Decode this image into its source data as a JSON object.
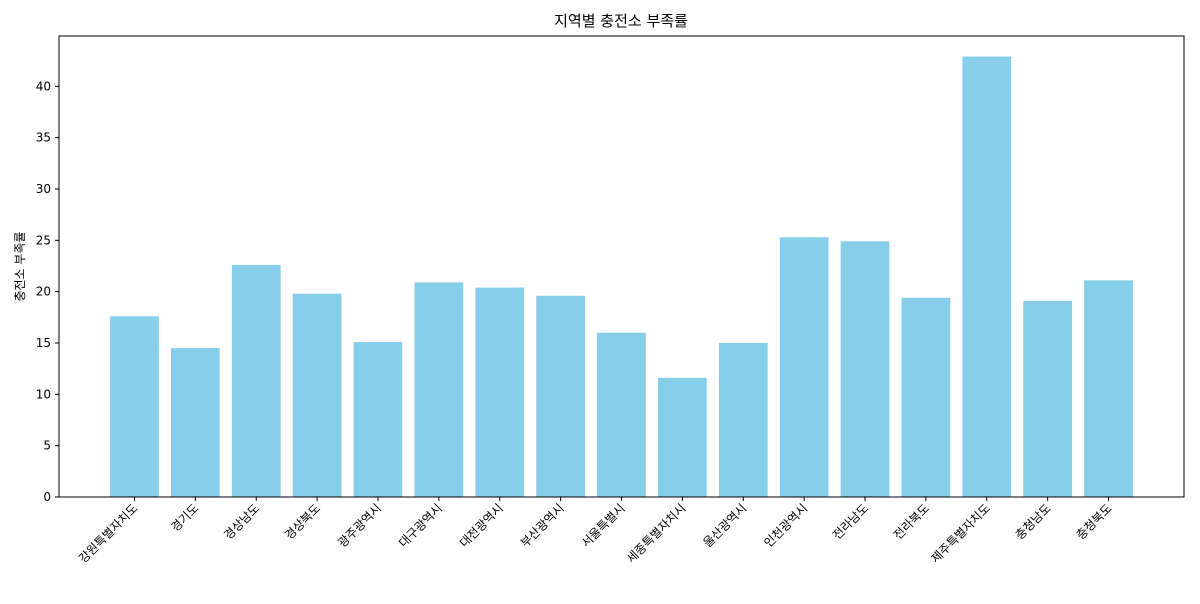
{
  "chart_data": {
    "type": "bar",
    "title": "지역별 충전소 부족률",
    "xlabel": "",
    "ylabel": "충전소 부족률",
    "categories": [
      "강원특별자치도",
      "경기도",
      "경상남도",
      "경상북도",
      "광주광역시",
      "대구광역시",
      "대전광역시",
      "부산광역시",
      "서울특별시",
      "세종특별자치시",
      "울산광역시",
      "인천광역시",
      "전라남도",
      "전라북도",
      "제주특별자치도",
      "충청남도",
      "충청북도"
    ],
    "values": [
      17.6,
      14.5,
      22.6,
      19.8,
      15.1,
      20.9,
      20.4,
      19.6,
      16.0,
      11.6,
      15.0,
      25.3,
      24.9,
      19.4,
      42.9,
      19.1,
      21.1
    ],
    "ylim": [
      0,
      44.9
    ],
    "yticks": [
      0,
      5,
      10,
      15,
      20,
      25,
      30,
      35,
      40
    ],
    "grid": false,
    "bar_color": "#87CEEB"
  }
}
